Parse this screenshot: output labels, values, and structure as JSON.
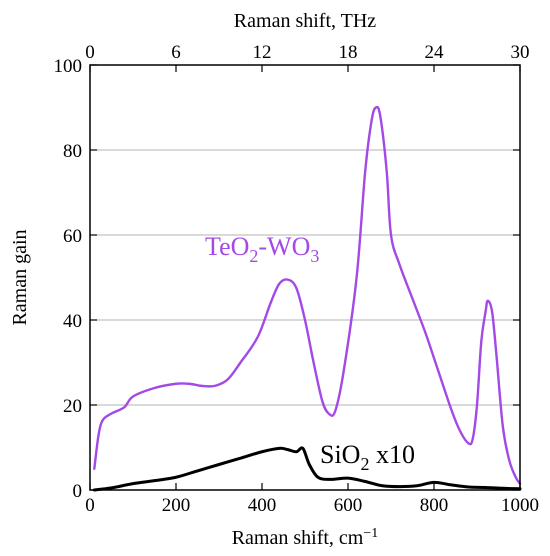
{
  "chart_data": {
    "type": "line",
    "xlabel": "Raman shift, cm",
    "xlabel_sup": "−1",
    "x2label": "Raman shift, THz",
    "ylabel": "Raman gain",
    "xlim": [
      0,
      1000
    ],
    "ylim": [
      0,
      100
    ],
    "x2lim": [
      0,
      30
    ],
    "xticks": [
      0,
      200,
      400,
      600,
      800,
      1000
    ],
    "x2ticks": [
      0,
      6,
      12,
      18,
      24,
      30
    ],
    "yticks": [
      0,
      20,
      40,
      60,
      80,
      100
    ],
    "grid": "horizontal",
    "series": [
      {
        "label_parts": [
          {
            "text": "TeO",
            "sub": false
          },
          {
            "text": "2",
            "sub": true
          },
          {
            "text": "-WO",
            "sub": false
          },
          {
            "text": "3",
            "sub": true
          }
        ],
        "color": "#a349e6",
        "points": [
          [
            10,
            5
          ],
          [
            20,
            13
          ],
          [
            30,
            16.5
          ],
          [
            50,
            18
          ],
          [
            80,
            19.5
          ],
          [
            100,
            22
          ],
          [
            150,
            24
          ],
          [
            200,
            25
          ],
          [
            230,
            25
          ],
          [
            260,
            24.5
          ],
          [
            290,
            24.5
          ],
          [
            320,
            26
          ],
          [
            350,
            30
          ],
          [
            390,
            36
          ],
          [
            420,
            44
          ],
          [
            440,
            48.5
          ],
          [
            460,
            49.5
          ],
          [
            480,
            47.5
          ],
          [
            500,
            40
          ],
          [
            520,
            30
          ],
          [
            540,
            21
          ],
          [
            555,
            18
          ],
          [
            570,
            18.5
          ],
          [
            590,
            28
          ],
          [
            620,
            50
          ],
          [
            640,
            75
          ],
          [
            655,
            87
          ],
          [
            665,
            90
          ],
          [
            675,
            88
          ],
          [
            690,
            75
          ],
          [
            700,
            60
          ],
          [
            720,
            53
          ],
          [
            750,
            45
          ],
          [
            780,
            37
          ],
          [
            810,
            28
          ],
          [
            840,
            19
          ],
          [
            860,
            14
          ],
          [
            880,
            11
          ],
          [
            890,
            12
          ],
          [
            900,
            20
          ],
          [
            910,
            35
          ],
          [
            920,
            42
          ],
          [
            925,
            44.5
          ],
          [
            935,
            42
          ],
          [
            945,
            32
          ],
          [
            960,
            15
          ],
          [
            975,
            7
          ],
          [
            990,
            3
          ],
          [
            1000,
            1.5
          ]
        ]
      },
      {
        "label_parts": [
          {
            "text": "SiO",
            "sub": false
          },
          {
            "text": "2",
            "sub": true
          },
          {
            "text": " x10",
            "sub": false
          }
        ],
        "color": "#000000",
        "points": [
          [
            10,
            0
          ],
          [
            50,
            0.5
          ],
          [
            100,
            1.5
          ],
          [
            150,
            2.2
          ],
          [
            200,
            3
          ],
          [
            250,
            4.5
          ],
          [
            300,
            6
          ],
          [
            350,
            7.5
          ],
          [
            400,
            9
          ],
          [
            440,
            9.8
          ],
          [
            460,
            9.5
          ],
          [
            480,
            9
          ],
          [
            495,
            9.8
          ],
          [
            510,
            6
          ],
          [
            530,
            3
          ],
          [
            560,
            2.5
          ],
          [
            600,
            2.8
          ],
          [
            640,
            2
          ],
          [
            680,
            1
          ],
          [
            720,
            0.8
          ],
          [
            760,
            1
          ],
          [
            800,
            1.8
          ],
          [
            840,
            1.2
          ],
          [
            880,
            0.7
          ],
          [
            920,
            0.6
          ],
          [
            960,
            0.4
          ],
          [
            1000,
            0.3
          ]
        ]
      }
    ]
  }
}
